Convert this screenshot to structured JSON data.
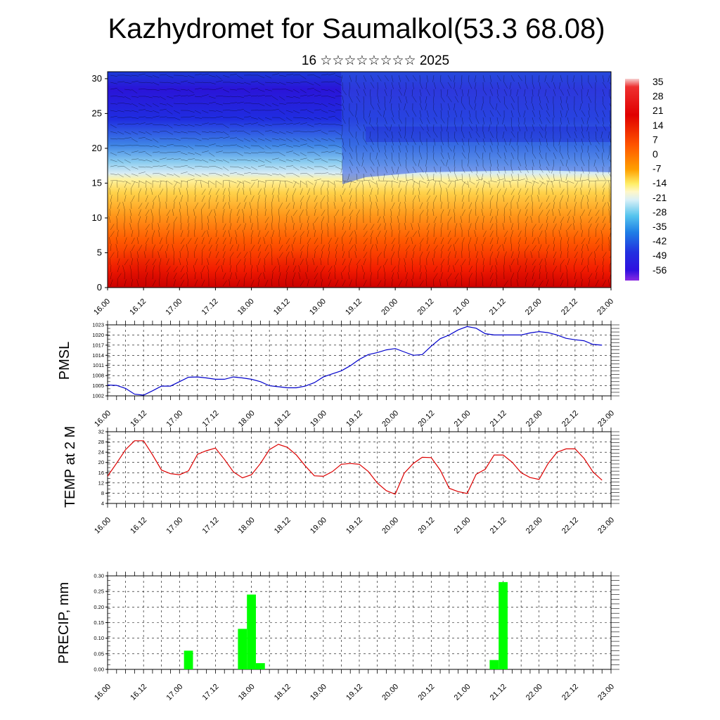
{
  "title": "Kazhydromet for Saumalkol(53.3 68.08)",
  "subtitle": "16 ☆☆☆☆☆☆☆☆ 2025",
  "time_ticks": [
    "16.00",
    "16.12",
    "17.00",
    "17.12",
    "18.00",
    "18.12",
    "19.00",
    "19.12",
    "20.00",
    "20.12",
    "21.00",
    "21.12",
    "22.00",
    "22.12",
    "23.00"
  ],
  "colors": {
    "pmsl_line": "#0000cc",
    "temp_line": "#dd0000",
    "precip_bar": "#00ff00"
  },
  "chart_data": [
    {
      "type": "heatmap",
      "title": "Kazhydromet for Saumalkol(53.3 68.08)",
      "subtitle": "16 ☆☆☆☆☆☆☆☆ 2025",
      "x": [
        "16.00",
        "16.12",
        "17.00",
        "17.12",
        "18.00",
        "18.12",
        "19.00",
        "19.12",
        "20.00",
        "20.12",
        "21.00",
        "21.12",
        "22.00",
        "22.12",
        "23.00"
      ],
      "yticks": [
        0,
        5,
        10,
        15,
        20,
        25,
        30
      ],
      "ylim": [
        0,
        31
      ],
      "colorbar_labels": [
        "35",
        "28",
        "21",
        "14",
        "7",
        "0",
        "-7",
        "-14",
        "-21",
        "-28",
        "-35",
        "-42",
        "-49",
        "-56"
      ],
      "colorbar_range": [
        -60,
        38
      ],
      "colorbar_position": "right",
      "overlay": "wind barbs"
    },
    {
      "type": "line",
      "ylabel": "PMSL",
      "yticks": [
        "1002",
        "1005",
        "1008",
        "1011",
        "1014",
        "1017",
        "1020",
        "1023"
      ],
      "ylim": [
        1002,
        1023
      ],
      "grid": true,
      "x": [
        0,
        3,
        6,
        9,
        12,
        15,
        18,
        21,
        24,
        27,
        30,
        33,
        36,
        39,
        42,
        45,
        48,
        51,
        54,
        57,
        60,
        63,
        66,
        69,
        72,
        75,
        78,
        81,
        84,
        87,
        90,
        93,
        96,
        99,
        102,
        105,
        108,
        111,
        114,
        117,
        120,
        123,
        126,
        129,
        132,
        135,
        138,
        141,
        144,
        147,
        150,
        153,
        156,
        159,
        162,
        165
      ],
      "x_unit": "hours from 16.00",
      "series": [
        {
          "values": [
            1005.2,
            1005.1,
            1004.2,
            1002.5,
            1002.2,
            1003.5,
            1004.9,
            1004.9,
            1006.2,
            1007.5,
            1007.6,
            1007.3,
            1006.9,
            1006.9,
            1007.6,
            1007.3,
            1006.9,
            1006.2,
            1005,
            1004.7,
            1004.4,
            1004.4,
            1004.9,
            1005.9,
            1007.6,
            1008.5,
            1009.4,
            1010.9,
            1012.8,
            1014.2,
            1014.8,
            1015.6,
            1016,
            1015,
            1014,
            1014.2,
            1016.7,
            1018.9,
            1020,
            1021.5,
            1022.5,
            1022,
            1020.4,
            1020,
            1020,
            1020,
            1020,
            1020.6,
            1021,
            1020.7,
            1020,
            1019,
            1018.6,
            1018.3,
            1017.2,
            1017
          ],
          "color": "#0000cc"
        }
      ]
    },
    {
      "type": "line",
      "ylabel": "TEMP at 2 M",
      "yticks": [
        "4",
        "8",
        "12",
        "16",
        "20",
        "24",
        "28",
        "32"
      ],
      "ylim": [
        4,
        32
      ],
      "grid": true,
      "x": [
        0,
        3,
        6,
        9,
        12,
        15,
        18,
        21,
        24,
        27,
        30,
        33,
        36,
        39,
        42,
        45,
        48,
        51,
        54,
        57,
        60,
        63,
        66,
        69,
        72,
        75,
        78,
        81,
        84,
        87,
        90,
        93,
        96,
        99,
        102,
        105,
        108,
        111,
        114,
        117,
        120,
        123,
        126,
        129,
        132,
        135,
        138,
        141,
        144,
        147,
        150,
        153,
        156,
        159,
        162,
        165
      ],
      "x_unit": "hours from 16.00",
      "series": [
        {
          "values": [
            14.6,
            19.7,
            25,
            28.5,
            28.5,
            23,
            17,
            15.6,
            15.2,
            16.7,
            23.2,
            24.6,
            25.6,
            21.2,
            16.3,
            14,
            15.2,
            19.6,
            25,
            27.1,
            25.9,
            22.9,
            18.6,
            14.8,
            14.6,
            16.4,
            19.3,
            19.6,
            19.3,
            16.5,
            12,
            9,
            7.6,
            15.8,
            19.6,
            22,
            21.9,
            17,
            9.9,
            8.6,
            7.9,
            15.4,
            17.3,
            22.9,
            22.9,
            20.1,
            16,
            14.1,
            13.4,
            19.6,
            24,
            25.3,
            25.3,
            21.6,
            16.3,
            13.1
          ],
          "color": "#dd0000"
        }
      ]
    },
    {
      "type": "bar",
      "ylabel": "PRECIP, mm",
      "yticks": [
        "0.00",
        "0.05",
        "0.10",
        "0.15",
        "0.20",
        "0.25",
        "0.30"
      ],
      "ylim": [
        0,
        0.3
      ],
      "grid": true,
      "bar_width_hours": 3,
      "x_unit": "hours from 16.00",
      "series": [
        {
          "x": [
            27,
            45,
            48,
            51,
            129,
            132
          ],
          "values": [
            0.06,
            0.13,
            0.24,
            0.02,
            0.03,
            0.28
          ],
          "color": "#00ff00"
        }
      ]
    }
  ]
}
